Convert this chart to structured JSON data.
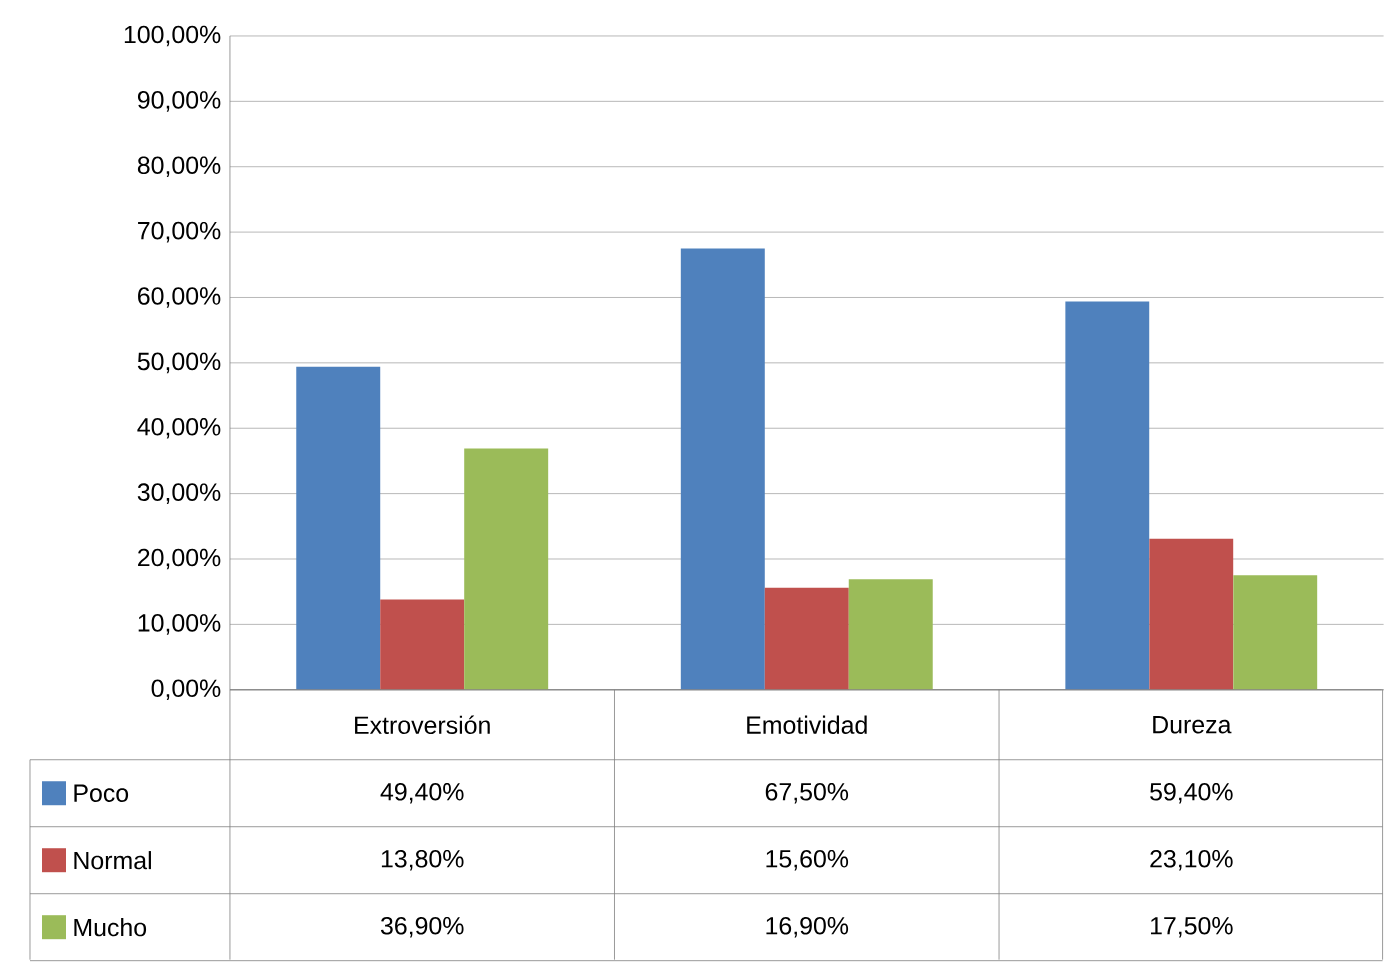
{
  "chart_data": {
    "type": "bar",
    "categories": [
      "Extroversión",
      "Emotividad",
      "Dureza"
    ],
    "series": [
      {
        "name": "Poco",
        "color": "#4f81bd",
        "values": [
          49.4,
          67.5,
          59.4
        ],
        "value_labels": [
          "49,40%",
          "67,50%",
          "59,40%"
        ]
      },
      {
        "name": "Normal",
        "color": "#c0504d",
        "values": [
          13.8,
          15.6,
          23.1
        ],
        "value_labels": [
          "13,80%",
          "15,60%",
          "23,10%"
        ]
      },
      {
        "name": "Mucho",
        "color": "#9bbb59",
        "values": [
          36.9,
          16.9,
          17.5
        ],
        "value_labels": [
          "36,90%",
          "16,90%",
          "17,50%"
        ]
      }
    ],
    "ylim": [
      0,
      100
    ],
    "yticks": [
      {
        "value": 0,
        "label": "0,00%"
      },
      {
        "value": 10,
        "label": "10,00%"
      },
      {
        "value": 20,
        "label": "20,00%"
      },
      {
        "value": 30,
        "label": "30,00%"
      },
      {
        "value": 40,
        "label": "40,00%"
      },
      {
        "value": 50,
        "label": "50,00%"
      },
      {
        "value": 60,
        "label": "60,00%"
      },
      {
        "value": 70,
        "label": "70,00%"
      },
      {
        "value": 80,
        "label": "80,00%"
      },
      {
        "value": 90,
        "label": "90,00%"
      },
      {
        "value": 100,
        "label": "100,00%"
      }
    ],
    "grid": "y",
    "legend": "bottom left"
  }
}
